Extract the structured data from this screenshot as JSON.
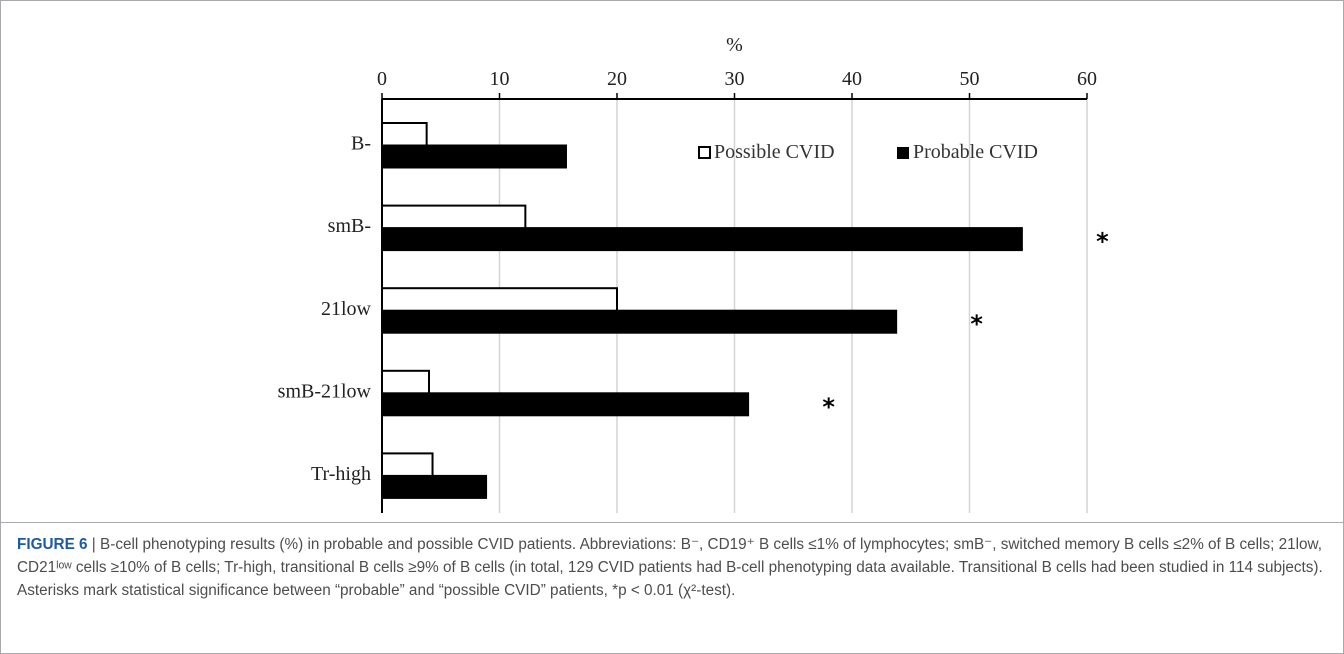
{
  "chart_data": {
    "type": "bar",
    "orientation": "horizontal",
    "title": "",
    "xlabel": "%",
    "ylabel": "",
    "xlim": [
      0,
      60
    ],
    "x_ticks": [
      "0",
      "10",
      "20",
      "30",
      "40",
      "50",
      "60"
    ],
    "x_axis_position": "top",
    "grid": true,
    "legend_position": "top-right",
    "categories": [
      "B-",
      "smB-",
      "21low",
      "smB-21low",
      "Tr-high"
    ],
    "series": [
      {
        "name": "Possible CVID",
        "color": "#ffffff",
        "values": [
          3.8,
          12.2,
          20.0,
          4.0,
          4.3
        ]
      },
      {
        "name": "Probable CVID",
        "color": "#000000",
        "values": [
          15.7,
          54.5,
          43.8,
          31.2,
          8.9
        ]
      }
    ],
    "significance_marker": "*",
    "significant_categories": [
      "smB-",
      "21low",
      "smB-21low"
    ]
  },
  "caption": {
    "label": "FIGURE 6",
    "text": " | B-cell phenotyping results (%) in probable and possible CVID patients. Abbreviations: B⁻, CD19⁺ B cells ≤1% of lymphocytes; smB⁻, switched memory B cells ≤2% of B cells; 21low, CD21ˡᵒʷ cells ≥10% of B cells; Tr-high, transitional B cells ≥9% of B cells (in total, 129 CVID patients had B-cell phenotyping data available. Transitional B cells had been studied in 114 subjects). Asterisks mark statistical significance between “probable” and “possible CVID” patients, *p < 0.01 (χ²-test)."
  }
}
